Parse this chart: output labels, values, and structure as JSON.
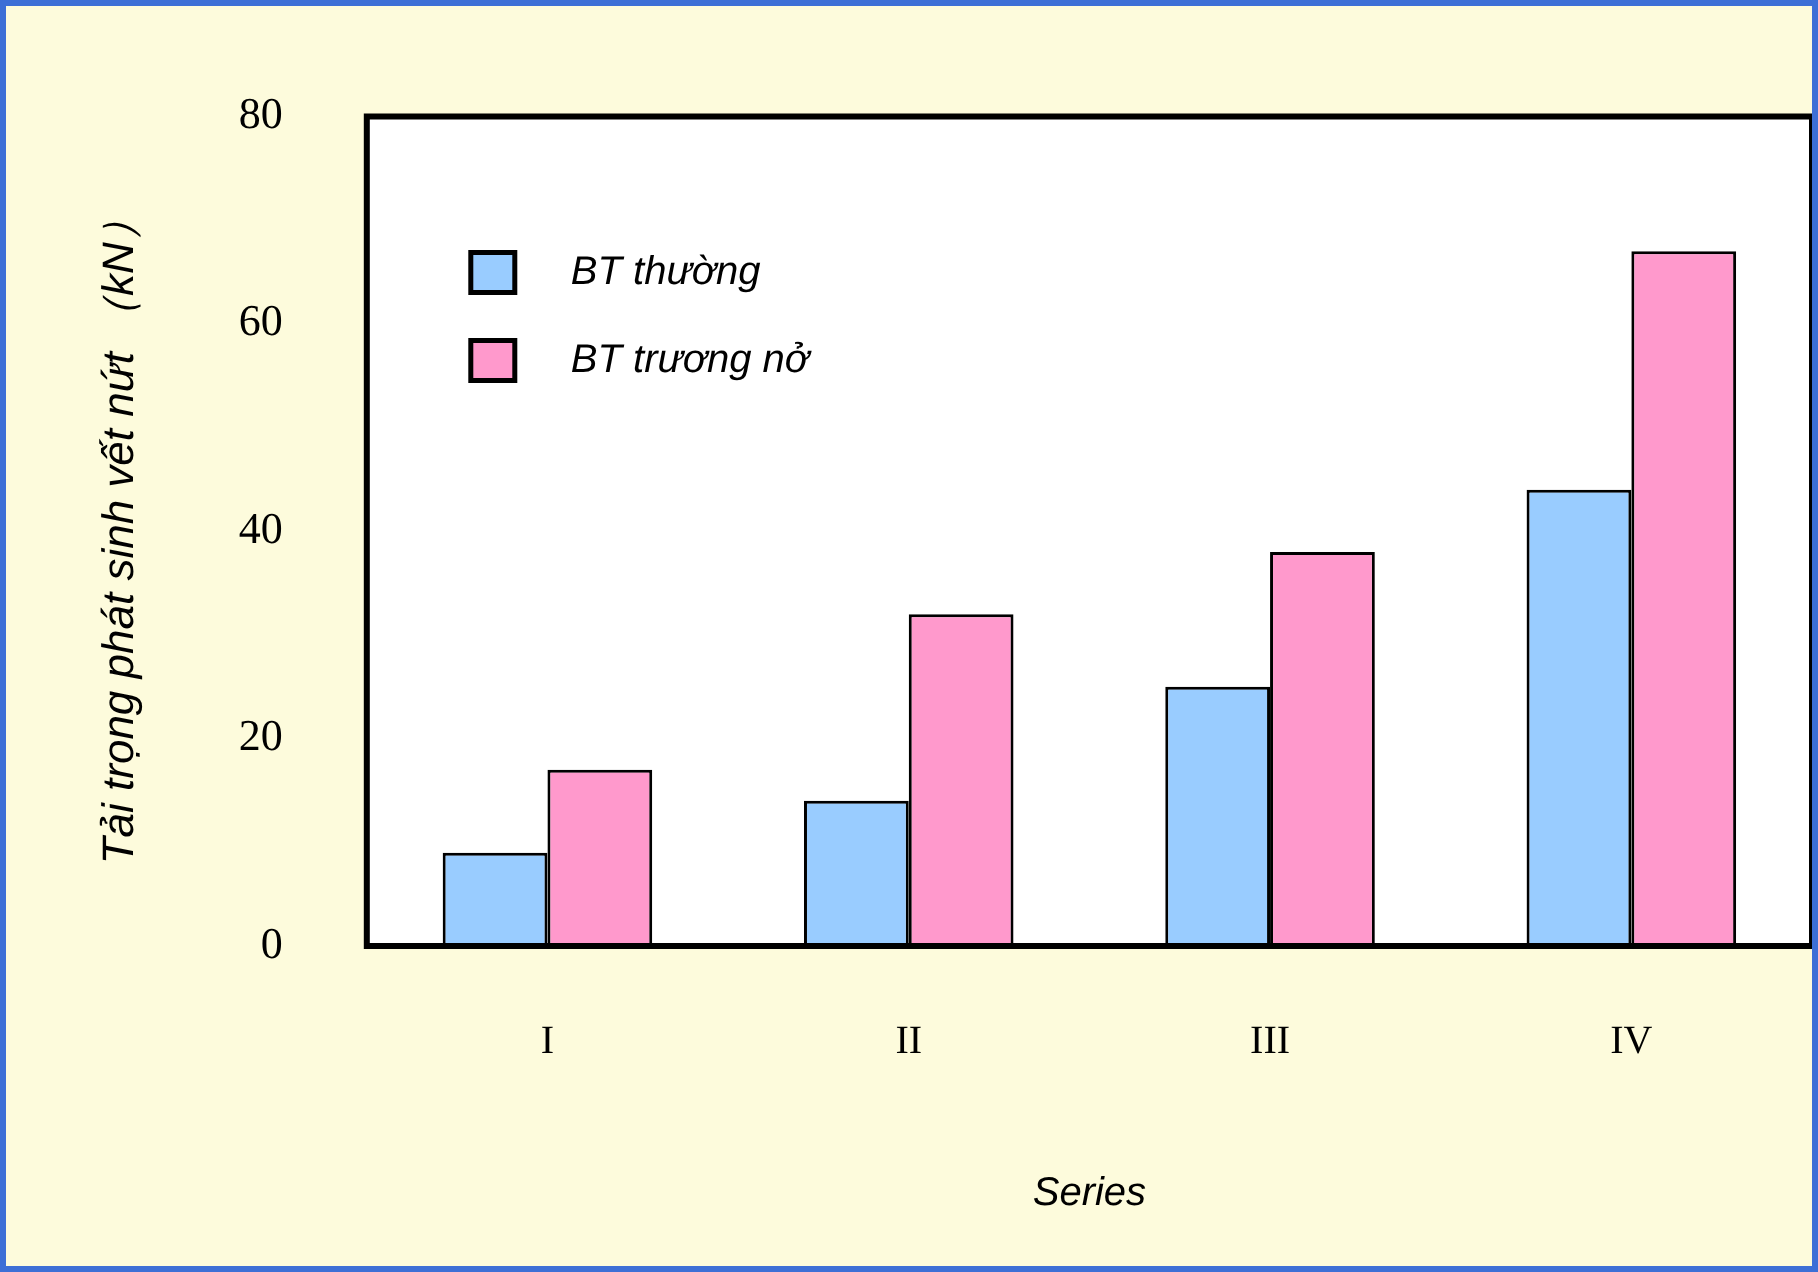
{
  "chart_data": {
    "type": "bar",
    "xlabel": "Series",
    "ylabel": "Tải trọng phát sinh vết nứt （kN）",
    "categories": [
      "I",
      "II",
      "III",
      "IV"
    ],
    "series": [
      {
        "name": "BT thường",
        "color": "#99ccff",
        "values": [
          9,
          14,
          25,
          44
        ]
      },
      {
        "name": "BT trương nở",
        "color": "#ff99cc",
        "values": [
          17,
          32,
          38,
          67
        ]
      }
    ],
    "ylim": [
      0,
      80
    ],
    "yticks": [
      0,
      20,
      40,
      60,
      80
    ],
    "grid": false,
    "legend": "top left"
  }
}
